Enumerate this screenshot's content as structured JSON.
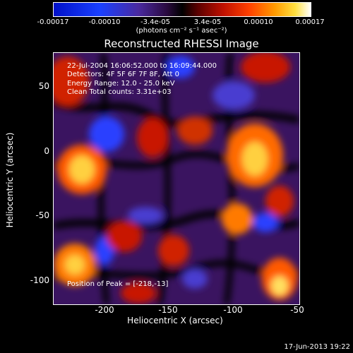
{
  "colorbar": {
    "ticks": [
      "-0.00017",
      "-0.00010",
      "-3.4e-05",
      "3.4e-05",
      "0.00010",
      "0.00017"
    ],
    "units": "(photons cm⁻² s⁻¹ asec⁻²)"
  },
  "title": "Reconstructed RHESSI Image",
  "info": {
    "time": "22-Jul-2004 16:06:52.000 to 16:09:44.000",
    "detectors": "Detectors: 4F 5F 6F 7F 8F, Att 0",
    "energy": "Energy Range: 12.0 - 25.0 keV",
    "clean": "Clean    Total counts: 3.31e+03",
    "peak": "Position of Peak = [-218,-13]"
  },
  "axes": {
    "xlabel": "Heliocentric X (arcsec)",
    "ylabel": "Heliocentric Y (arcsec)",
    "xticks": [
      "-200",
      "-150",
      "-100",
      "-50"
    ],
    "yticks": [
      "50",
      "0",
      "-50",
      "-100"
    ]
  },
  "timestamp": "17-Jun-2013 19:22"
}
